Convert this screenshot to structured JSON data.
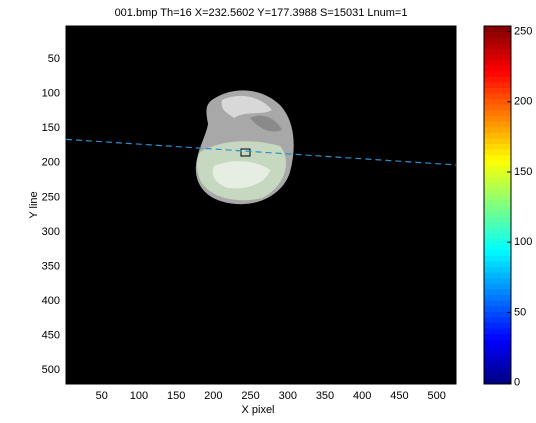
{
  "chart_data": {
    "type": "image",
    "title": "001.bmp    Th=16 X=232.5602 Y=177.3988 S=15031 Lnum=1",
    "x_label": "X pixel",
    "y_label": "Y line",
    "xlim": [
      2,
      526
    ],
    "xticks": [
      50,
      100,
      150,
      200,
      250,
      300,
      350,
      400,
      450,
      500
    ],
    "ylim": [
      2,
      520
    ],
    "y_reversed": true,
    "yticks": [
      50,
      100,
      150,
      200,
      250,
      300,
      350,
      400,
      450,
      500
    ],
    "series": [
      {
        "color": "#2a8fd0",
        "x": [
          2,
          526
        ],
        "y": [
          166,
          203
        ]
      }
    ],
    "colormap": "jet",
    "colorbar": {
      "clim": [
        -1,
        254
      ],
      "ticks": [
        0,
        50,
        100,
        150,
        200,
        250
      ]
    }
  }
}
